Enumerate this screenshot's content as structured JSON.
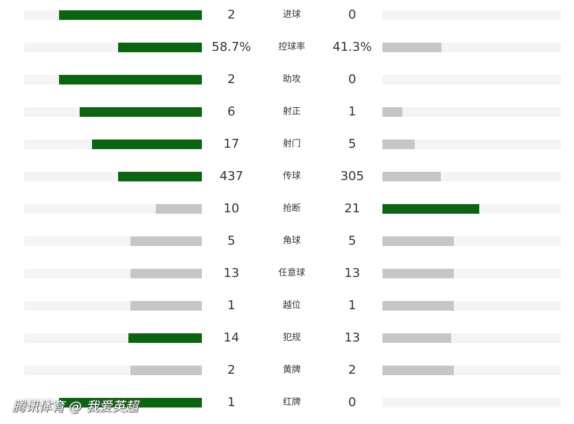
{
  "colors": {
    "leader": "#0a6510",
    "trailer": "#c6c6c6",
    "track": "#f4f4f4"
  },
  "rows": [
    {
      "label": "进球",
      "home": "2",
      "away": "0",
      "home_frac": 0.805,
      "away_frac": 0.0,
      "leader": "home"
    },
    {
      "label": "控球率",
      "home": "58.7%",
      "away": "41.3%",
      "home_frac": 0.471,
      "away_frac": 0.331,
      "leader": "home"
    },
    {
      "label": "助攻",
      "home": "2",
      "away": "0",
      "home_frac": 0.805,
      "away_frac": 0.0,
      "leader": "home"
    },
    {
      "label": "射正",
      "home": "6",
      "away": "1",
      "home_frac": 0.687,
      "away_frac": 0.112,
      "leader": "home"
    },
    {
      "label": "射门",
      "home": "17",
      "away": "5",
      "home_frac": 0.618,
      "away_frac": 0.181,
      "leader": "home"
    },
    {
      "label": "传球",
      "home": "437",
      "away": "305",
      "home_frac": 0.471,
      "away_frac": 0.327,
      "leader": "home"
    },
    {
      "label": "抢断",
      "home": "10",
      "away": "21",
      "home_frac": 0.259,
      "away_frac": 0.542,
      "leader": "away"
    },
    {
      "label": "角球",
      "home": "5",
      "away": "5",
      "home_frac": 0.402,
      "away_frac": 0.4,
      "leader": "none"
    },
    {
      "label": "任意球",
      "home": "13",
      "away": "13",
      "home_frac": 0.402,
      "away_frac": 0.4,
      "leader": "none"
    },
    {
      "label": "越位",
      "home": "1",
      "away": "1",
      "home_frac": 0.402,
      "away_frac": 0.4,
      "leader": "none"
    },
    {
      "label": "犯规",
      "home": "14",
      "away": "13",
      "home_frac": 0.413,
      "away_frac": 0.385,
      "leader": "home"
    },
    {
      "label": "黄牌",
      "home": "2",
      "away": "2",
      "home_frac": 0.402,
      "away_frac": 0.4,
      "leader": "none"
    },
    {
      "label": "红牌",
      "home": "1",
      "away": "0",
      "home_frac": 0.805,
      "away_frac": 0.0,
      "leader": "home"
    }
  ],
  "watermark": "腾讯体育 @ 我爱英超"
}
